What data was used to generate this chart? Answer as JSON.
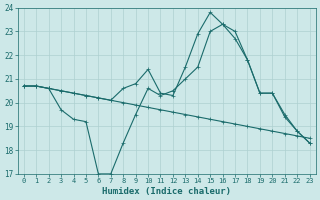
{
  "xlabel": "Humidex (Indice chaleur)",
  "bg_color": "#cde8e8",
  "line_color": "#1a6b6b",
  "grid_color": "#aed0d0",
  "xlim": [
    -0.5,
    23.5
  ],
  "ylim": [
    17,
    24
  ],
  "xticks": [
    0,
    1,
    2,
    3,
    4,
    5,
    6,
    7,
    8,
    9,
    10,
    11,
    12,
    13,
    14,
    15,
    16,
    17,
    18,
    19,
    20,
    21,
    22,
    23
  ],
  "yticks": [
    17,
    18,
    19,
    20,
    21,
    22,
    23,
    24
  ],
  "line1_x": [
    0,
    1,
    2,
    3,
    4,
    5,
    6,
    7,
    8,
    9,
    10,
    11,
    12,
    13,
    14,
    15,
    16,
    17,
    18,
    19,
    20,
    21,
    22,
    23
  ],
  "line1_y": [
    20.7,
    20.7,
    20.6,
    20.5,
    20.4,
    20.3,
    20.2,
    20.1,
    20.0,
    19.9,
    19.8,
    19.7,
    19.6,
    19.5,
    19.4,
    19.3,
    19.2,
    19.1,
    19.0,
    18.9,
    18.8,
    18.7,
    18.6,
    18.5
  ],
  "line2_x": [
    0,
    1,
    2,
    3,
    4,
    5,
    6,
    7,
    8,
    9,
    10,
    11,
    12,
    13,
    14,
    15,
    16,
    17,
    18,
    19,
    20,
    21,
    22,
    23
  ],
  "line2_y": [
    20.7,
    20.7,
    20.6,
    19.7,
    19.3,
    19.2,
    17.0,
    17.0,
    18.3,
    19.5,
    20.6,
    20.3,
    20.5,
    21.0,
    21.5,
    23.0,
    23.3,
    23.0,
    21.8,
    20.4,
    20.4,
    19.4,
    18.8,
    18.3
  ],
  "line3_x": [
    0,
    1,
    2,
    3,
    4,
    5,
    6,
    7,
    8,
    9,
    10,
    11,
    12,
    13,
    14,
    15,
    16,
    17,
    18,
    19,
    20,
    21,
    22,
    23
  ],
  "line3_y": [
    20.7,
    20.7,
    20.6,
    20.5,
    20.4,
    20.3,
    20.2,
    20.1,
    20.6,
    20.8,
    21.4,
    20.4,
    20.3,
    21.5,
    22.9,
    23.8,
    23.3,
    22.7,
    21.8,
    20.4,
    20.4,
    19.5,
    18.8,
    18.3
  ]
}
